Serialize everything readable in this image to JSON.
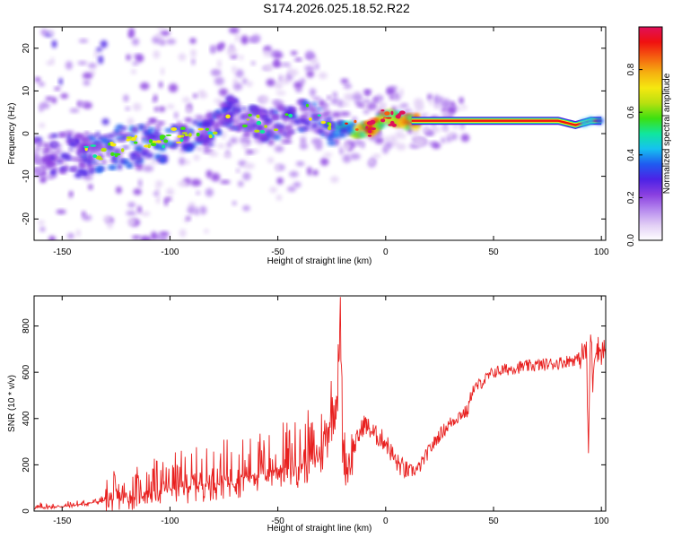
{
  "title": "S174.2026.025.18.52.R22",
  "chart_data": [
    {
      "type": "heatmap",
      "xlabel": "Height of straight line (km)",
      "ylabel": "Frequency (Hz)",
      "xlim": [
        -163,
        102
      ],
      "ylim": [
        -25,
        25
      ],
      "xticks": [
        -150,
        -100,
        -50,
        0,
        50,
        100
      ],
      "yticks": [
        -20,
        -10,
        0,
        10,
        20
      ],
      "colorbar": {
        "label": "Normalized spectral amplitude",
        "range": [
          0,
          1
        ],
        "ticks": [
          0.0,
          0.2,
          0.4,
          0.6,
          0.8
        ],
        "tick_labels": [
          "0.0",
          "0.2",
          "0.4",
          "0.6",
          "0.8"
        ],
        "colors": [
          "#ffffff",
          "#e2cff5",
          "#b689ee",
          "#8a3fe0",
          "#4c22e6",
          "#1f5bf0",
          "#15c2f0",
          "#10e69e",
          "#3ce010",
          "#b8e010",
          "#f5e810",
          "#f5b010",
          "#f56010",
          "#f01010",
          "#e0105a"
        ]
      },
      "ridge": [
        {
          "x": -160,
          "f": -6,
          "amp": 0.2
        },
        {
          "x": -150,
          "f": -5,
          "amp": 0.25
        },
        {
          "x": -140,
          "f": -5,
          "amp": 0.3
        },
        {
          "x": -130,
          "f": -4,
          "amp": 0.35
        },
        {
          "x": -120,
          "f": -3,
          "amp": 0.35
        },
        {
          "x": -110,
          "f": -2,
          "amp": 0.35
        },
        {
          "x": -100,
          "f": -1,
          "amp": 0.35
        },
        {
          "x": -90,
          "f": 0,
          "amp": 0.3
        },
        {
          "x": -80,
          "f": 1,
          "amp": 0.3
        },
        {
          "x": -73,
          "f": 5,
          "amp": 0.3
        },
        {
          "x": -65,
          "f": 3,
          "amp": 0.3
        },
        {
          "x": -55,
          "f": 2,
          "amp": 0.3
        },
        {
          "x": -45,
          "f": 3,
          "amp": 0.3
        },
        {
          "x": -35,
          "f": 5,
          "amp": 0.3
        },
        {
          "x": -30,
          "f": 3,
          "amp": 0.3
        },
        {
          "x": -25,
          "f": 1,
          "amp": 0.4
        },
        {
          "x": -15,
          "f": 1,
          "amp": 0.6
        },
        {
          "x": -8,
          "f": 1,
          "amp": 0.9
        },
        {
          "x": 0,
          "f": 4,
          "amp": 0.7
        },
        {
          "x": 10,
          "f": 3,
          "amp": 0.85
        },
        {
          "x": 20,
          "f": 3,
          "amp": 1.0
        },
        {
          "x": 40,
          "f": 3,
          "amp": 1.0
        },
        {
          "x": 60,
          "f": 3,
          "amp": 1.0
        },
        {
          "x": 80,
          "f": 3,
          "amp": 0.95
        },
        {
          "x": 88,
          "f": 2,
          "amp": 0.8
        },
        {
          "x": 95,
          "f": 3,
          "amp": 0.5
        },
        {
          "x": 100,
          "f": 3,
          "amp": 0.4
        }
      ]
    },
    {
      "type": "line",
      "xlabel": "Height of straight line (km)",
      "ylabel": "SNR (10 * v/v)",
      "xlim": [
        -163,
        102
      ],
      "ylim": [
        0,
        930
      ],
      "xticks": [
        -150,
        -100,
        -50,
        0,
        50,
        100
      ],
      "yticks": [
        0,
        200,
        400,
        600,
        800
      ],
      "color": "#e8201f",
      "series": [
        {
          "name": "SNR",
          "x": [
            -163,
            -150,
            -140,
            -130,
            -120,
            -110,
            -100,
            -90,
            -80,
            -70,
            -60,
            -50,
            -40,
            -30,
            -25,
            -22,
            -21,
            -20,
            -18,
            -15,
            -10,
            -5,
            0,
            5,
            10,
            15,
            20,
            25,
            30,
            35,
            38,
            40,
            45,
            50,
            60,
            70,
            80,
            90,
            93,
            94,
            95,
            96,
            97,
            100,
            102
          ],
          "values": [
            15,
            20,
            30,
            45,
            60,
            80,
            100,
            110,
            125,
            140,
            160,
            180,
            200,
            240,
            420,
            520,
            870,
            300,
            190,
            270,
            380,
            330,
            300,
            210,
            170,
            180,
            260,
            330,
            380,
            420,
            430,
            520,
            560,
            600,
            620,
            630,
            640,
            660,
            700,
            250,
            800,
            560,
            710,
            690,
            700
          ]
        }
      ]
    }
  ]
}
